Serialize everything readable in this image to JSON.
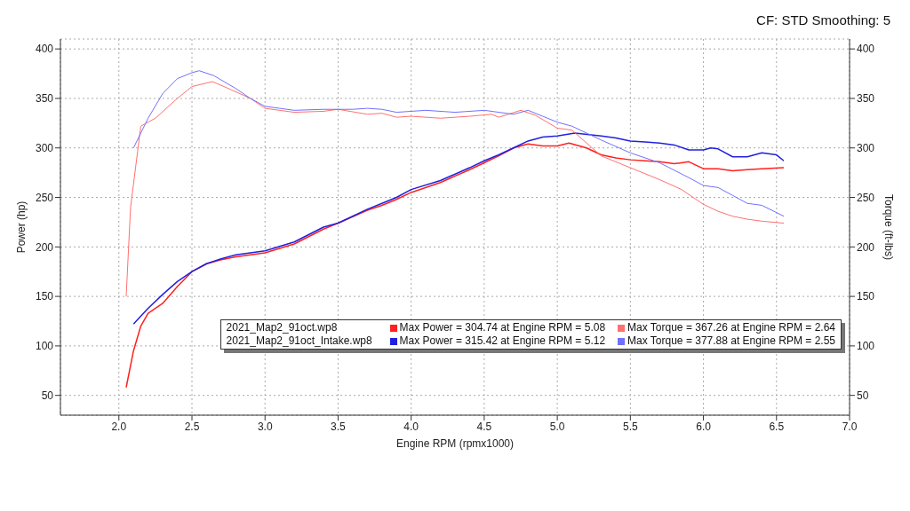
{
  "chart_data": {
    "type": "line",
    "xlabel": "Engine RPM (rpmx1000)",
    "ylabel": "Power (hp)",
    "y2label": "Torque (ft-lbs)",
    "annotations": [
      "CF: STD Smoothing: 5",
      "2021_Map2_91oct.wp8",
      "2021_Map2_91oct_Intake.wp8"
    ],
    "xlim": [
      1.6,
      7.0
    ],
    "xticks": [
      {
        "value": 2,
        "label": "2.0"
      },
      2.5,
      {
        "value": 3,
        "label": "3.0"
      },
      3.5,
      {
        "value": 4,
        "label": "4.0"
      },
      4.5,
      {
        "value": 5,
        "label": "5.0"
      },
      5.5,
      {
        "value": 6,
        "label": "6.0"
      },
      6.5,
      {
        "value": 7,
        "label": "7.0"
      }
    ],
    "ylim": [
      30,
      410
    ],
    "yticks": [
      50,
      100,
      150,
      200,
      250,
      300,
      350,
      400
    ],
    "y2lim": [
      30,
      410
    ],
    "y2ticks": [
      50,
      100,
      150,
      200,
      250,
      300,
      350,
      400
    ],
    "grid": true,
    "legend": "right",
    "line_style": "solid",
    "marker": "none",
    "series": [
      {
        "name": "Max Power = 304.74 at Engine RPM = 5.08",
        "color": "#ff2020",
        "axis": "y",
        "x": [
          2.05,
          2.1,
          2.15,
          2.2,
          2.3,
          2.4,
          2.5,
          2.6,
          2.7,
          2.8,
          3.0,
          3.2,
          3.4,
          3.5,
          3.7,
          3.8,
          3.9,
          4.0,
          4.2,
          4.4,
          4.5,
          4.6,
          4.7,
          4.8,
          4.9,
          5.0,
          5.08,
          5.2,
          5.3,
          5.4,
          5.5,
          5.6,
          5.7,
          5.8,
          5.9,
          6.0,
          6.1,
          6.2,
          6.3,
          6.4,
          6.55
        ],
        "values": [
          58,
          95,
          120,
          133,
          143,
          160,
          175,
          183,
          187,
          190,
          194,
          203,
          218,
          224,
          237,
          242,
          248,
          255,
          265,
          278,
          285,
          292,
          300,
          304,
          302,
          302,
          305,
          300,
          293,
          290,
          288,
          287,
          286,
          284,
          286,
          279,
          279,
          277,
          278,
          279,
          280
        ]
      },
      {
        "name": "Max Power = 315.42 at Engine RPM = 5.12",
        "color": "#2020e0",
        "axis": "y",
        "x": [
          2.1,
          2.2,
          2.3,
          2.4,
          2.5,
          2.6,
          2.7,
          2.8,
          3.0,
          3.2,
          3.4,
          3.5,
          3.7,
          3.8,
          3.9,
          4.0,
          4.2,
          4.4,
          4.5,
          4.6,
          4.7,
          4.8,
          4.9,
          5.0,
          5.12,
          5.3,
          5.4,
          5.5,
          5.6,
          5.7,
          5.8,
          5.9,
          6.0,
          6.05,
          6.1,
          6.2,
          6.3,
          6.4,
          6.5,
          6.55
        ],
        "values": [
          122,
          138,
          152,
          165,
          175,
          183,
          188,
          192,
          196,
          205,
          220,
          224,
          238,
          244,
          250,
          258,
          267,
          280,
          287,
          293,
          300,
          307,
          311,
          312,
          315,
          312,
          310,
          307,
          306,
          305,
          303,
          298,
          298,
          300,
          299,
          291,
          291,
          295,
          293,
          287
        ]
      },
      {
        "name": "Max Torque = 367.26 at Engine RPM = 2.64",
        "color": "#ff7070",
        "axis": "y2",
        "x": [
          2.05,
          2.08,
          2.15,
          2.25,
          2.4,
          2.5,
          2.64,
          2.75,
          2.9,
          3.0,
          3.2,
          3.4,
          3.5,
          3.7,
          3.8,
          3.9,
          4.0,
          4.2,
          4.4,
          4.55,
          4.6,
          4.75,
          4.85,
          5.0,
          5.1,
          5.2,
          5.3,
          5.5,
          5.7,
          5.85,
          6.0,
          6.1,
          6.2,
          6.3,
          6.4,
          6.55
        ],
        "values": [
          150,
          240,
          322,
          330,
          350,
          362,
          367,
          360,
          350,
          340,
          336,
          337,
          339,
          334,
          335,
          331,
          332,
          330,
          332,
          334,
          331,
          338,
          333,
          320,
          318,
          305,
          292,
          280,
          268,
          258,
          243,
          236,
          231,
          228,
          226,
          224
        ]
      },
      {
        "name": "Max Torque = 377.88 at Engine RPM = 2.55",
        "color": "#7070ff",
        "axis": "y2",
        "x": [
          2.1,
          2.2,
          2.3,
          2.4,
          2.5,
          2.55,
          2.65,
          2.8,
          2.9,
          3.0,
          3.1,
          3.2,
          3.4,
          3.6,
          3.7,
          3.8,
          3.9,
          4.1,
          4.3,
          4.5,
          4.7,
          4.8,
          4.9,
          5.0,
          5.1,
          5.3,
          5.5,
          5.7,
          5.9,
          6.0,
          6.1,
          6.2,
          6.3,
          6.4,
          6.55
        ],
        "values": [
          300,
          330,
          355,
          370,
          376,
          378,
          373,
          360,
          350,
          342,
          340,
          338,
          339,
          339,
          340,
          339,
          336,
          338,
          336,
          338,
          334,
          338,
          332,
          326,
          322,
          308,
          295,
          285,
          270,
          262,
          260,
          252,
          244,
          242,
          231
        ]
      }
    ]
  }
}
